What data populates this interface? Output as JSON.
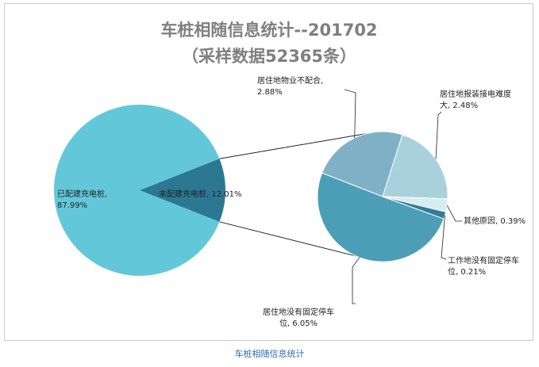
{
  "chart_data": {
    "type": "pie",
    "title": "车桩相随信息统计--201702",
    "subtitle": "（采样数据52365条）",
    "main_pie": {
      "slices": [
        {
          "label": "已配建充电桩",
          "value": 87.99,
          "display": "87.99%",
          "color": "#62c8d9"
        },
        {
          "label": "未配建充电桩",
          "value": 12.01,
          "display": "12.01%",
          "color": "#2c7893"
        }
      ]
    },
    "sub_pie": {
      "slices": [
        {
          "label": "居住地没有固定停车位",
          "value": 6.05,
          "display": "6.05%",
          "color": "#4c9eb7"
        },
        {
          "label": "居住地物业不配合",
          "value": 2.88,
          "display": "2.88%",
          "color": "#7fb1c6"
        },
        {
          "label": "居住地报装接电难度大",
          "value": 2.48,
          "display": "2.48%",
          "color": "#a9d1db"
        },
        {
          "label": "其他原因",
          "value": 0.39,
          "display": "0.39%",
          "color": "#d6ecf1"
        },
        {
          "label": "工作地没有固定停车位",
          "value": 0.21,
          "display": "0.21%",
          "color": "#2f7e98"
        }
      ]
    },
    "legend": "none"
  },
  "caption": "车桩相随信息统计"
}
